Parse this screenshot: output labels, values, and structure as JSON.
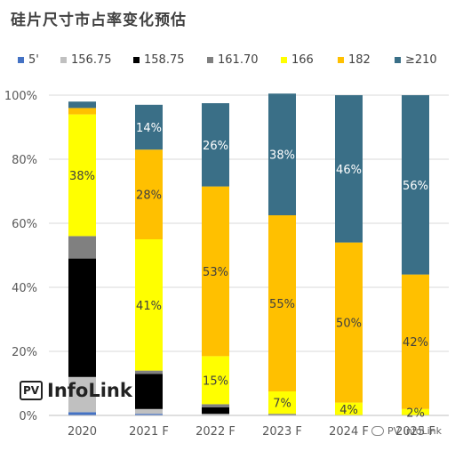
{
  "chart_data": {
    "type": "bar",
    "stacked": true,
    "title": "硅片尺寸市占率变化预估",
    "categories": [
      "2020",
      "2021 F",
      "2022 F",
      "2023 F",
      "2024 F",
      "2025 F"
    ],
    "ylim": [
      0,
      100
    ],
    "yticks": [
      "0%",
      "20%",
      "40%",
      "60%",
      "80%",
      "100%"
    ],
    "legend_position": "top",
    "series": [
      {
        "name": "5'",
        "color": "#4472c4",
        "values": [
          1,
          0.5,
          0,
          0,
          0,
          0
        ]
      },
      {
        "name": "156.75",
        "color": "#c0c0c0",
        "values": [
          11,
          1.5,
          0.5,
          0,
          0,
          0
        ]
      },
      {
        "name": "158.75",
        "color": "#000000",
        "values": [
          37,
          11,
          2,
          0,
          0,
          0
        ]
      },
      {
        "name": "161.70",
        "color": "#808080",
        "values": [
          7,
          1,
          1,
          0.5,
          0,
          0
        ]
      },
      {
        "name": "166",
        "color": "#ffff00",
        "values": [
          38,
          41,
          15,
          7,
          4,
          2
        ]
      },
      {
        "name": "182",
        "color": "#ffc000",
        "values": [
          2,
          28,
          53,
          55,
          50,
          42
        ]
      },
      {
        "name": "≥210",
        "color": "#3a6f87",
        "values": [
          2,
          14,
          26,
          38,
          46,
          56
        ]
      }
    ],
    "data_labels": [
      {
        "category": "2020",
        "series": "166",
        "text": "38%"
      },
      {
        "category": "2021 F",
        "series": "166",
        "text": "41%"
      },
      {
        "category": "2021 F",
        "series": "182",
        "text": "28%"
      },
      {
        "category": "2021 F",
        "series": "≥210",
        "text": "14%"
      },
      {
        "category": "2022 F",
        "series": "166",
        "text": "15%"
      },
      {
        "category": "2022 F",
        "series": "182",
        "text": "53%"
      },
      {
        "category": "2022 F",
        "series": "≥210",
        "text": "26%"
      },
      {
        "category": "2023 F",
        "series": "166",
        "text": "7%"
      },
      {
        "category": "2023 F",
        "series": "182",
        "text": "55%"
      },
      {
        "category": "2023 F",
        "series": "≥210",
        "text": "38%"
      },
      {
        "category": "2024 F",
        "series": "166",
        "text": "4%"
      },
      {
        "category": "2024 F",
        "series": "182",
        "text": "50%"
      },
      {
        "category": "2024 F",
        "series": "≥210",
        "text": "46%"
      },
      {
        "category": "2025 F",
        "series": "166",
        "text": "2%"
      },
      {
        "category": "2025 F",
        "series": "182",
        "text": "42%"
      },
      {
        "category": "2025 F",
        "series": "≥210",
        "text": "56%"
      }
    ]
  },
  "watermark": {
    "badge": "PV",
    "text": "InfoLink",
    "wechat": "PV InfoLink"
  }
}
